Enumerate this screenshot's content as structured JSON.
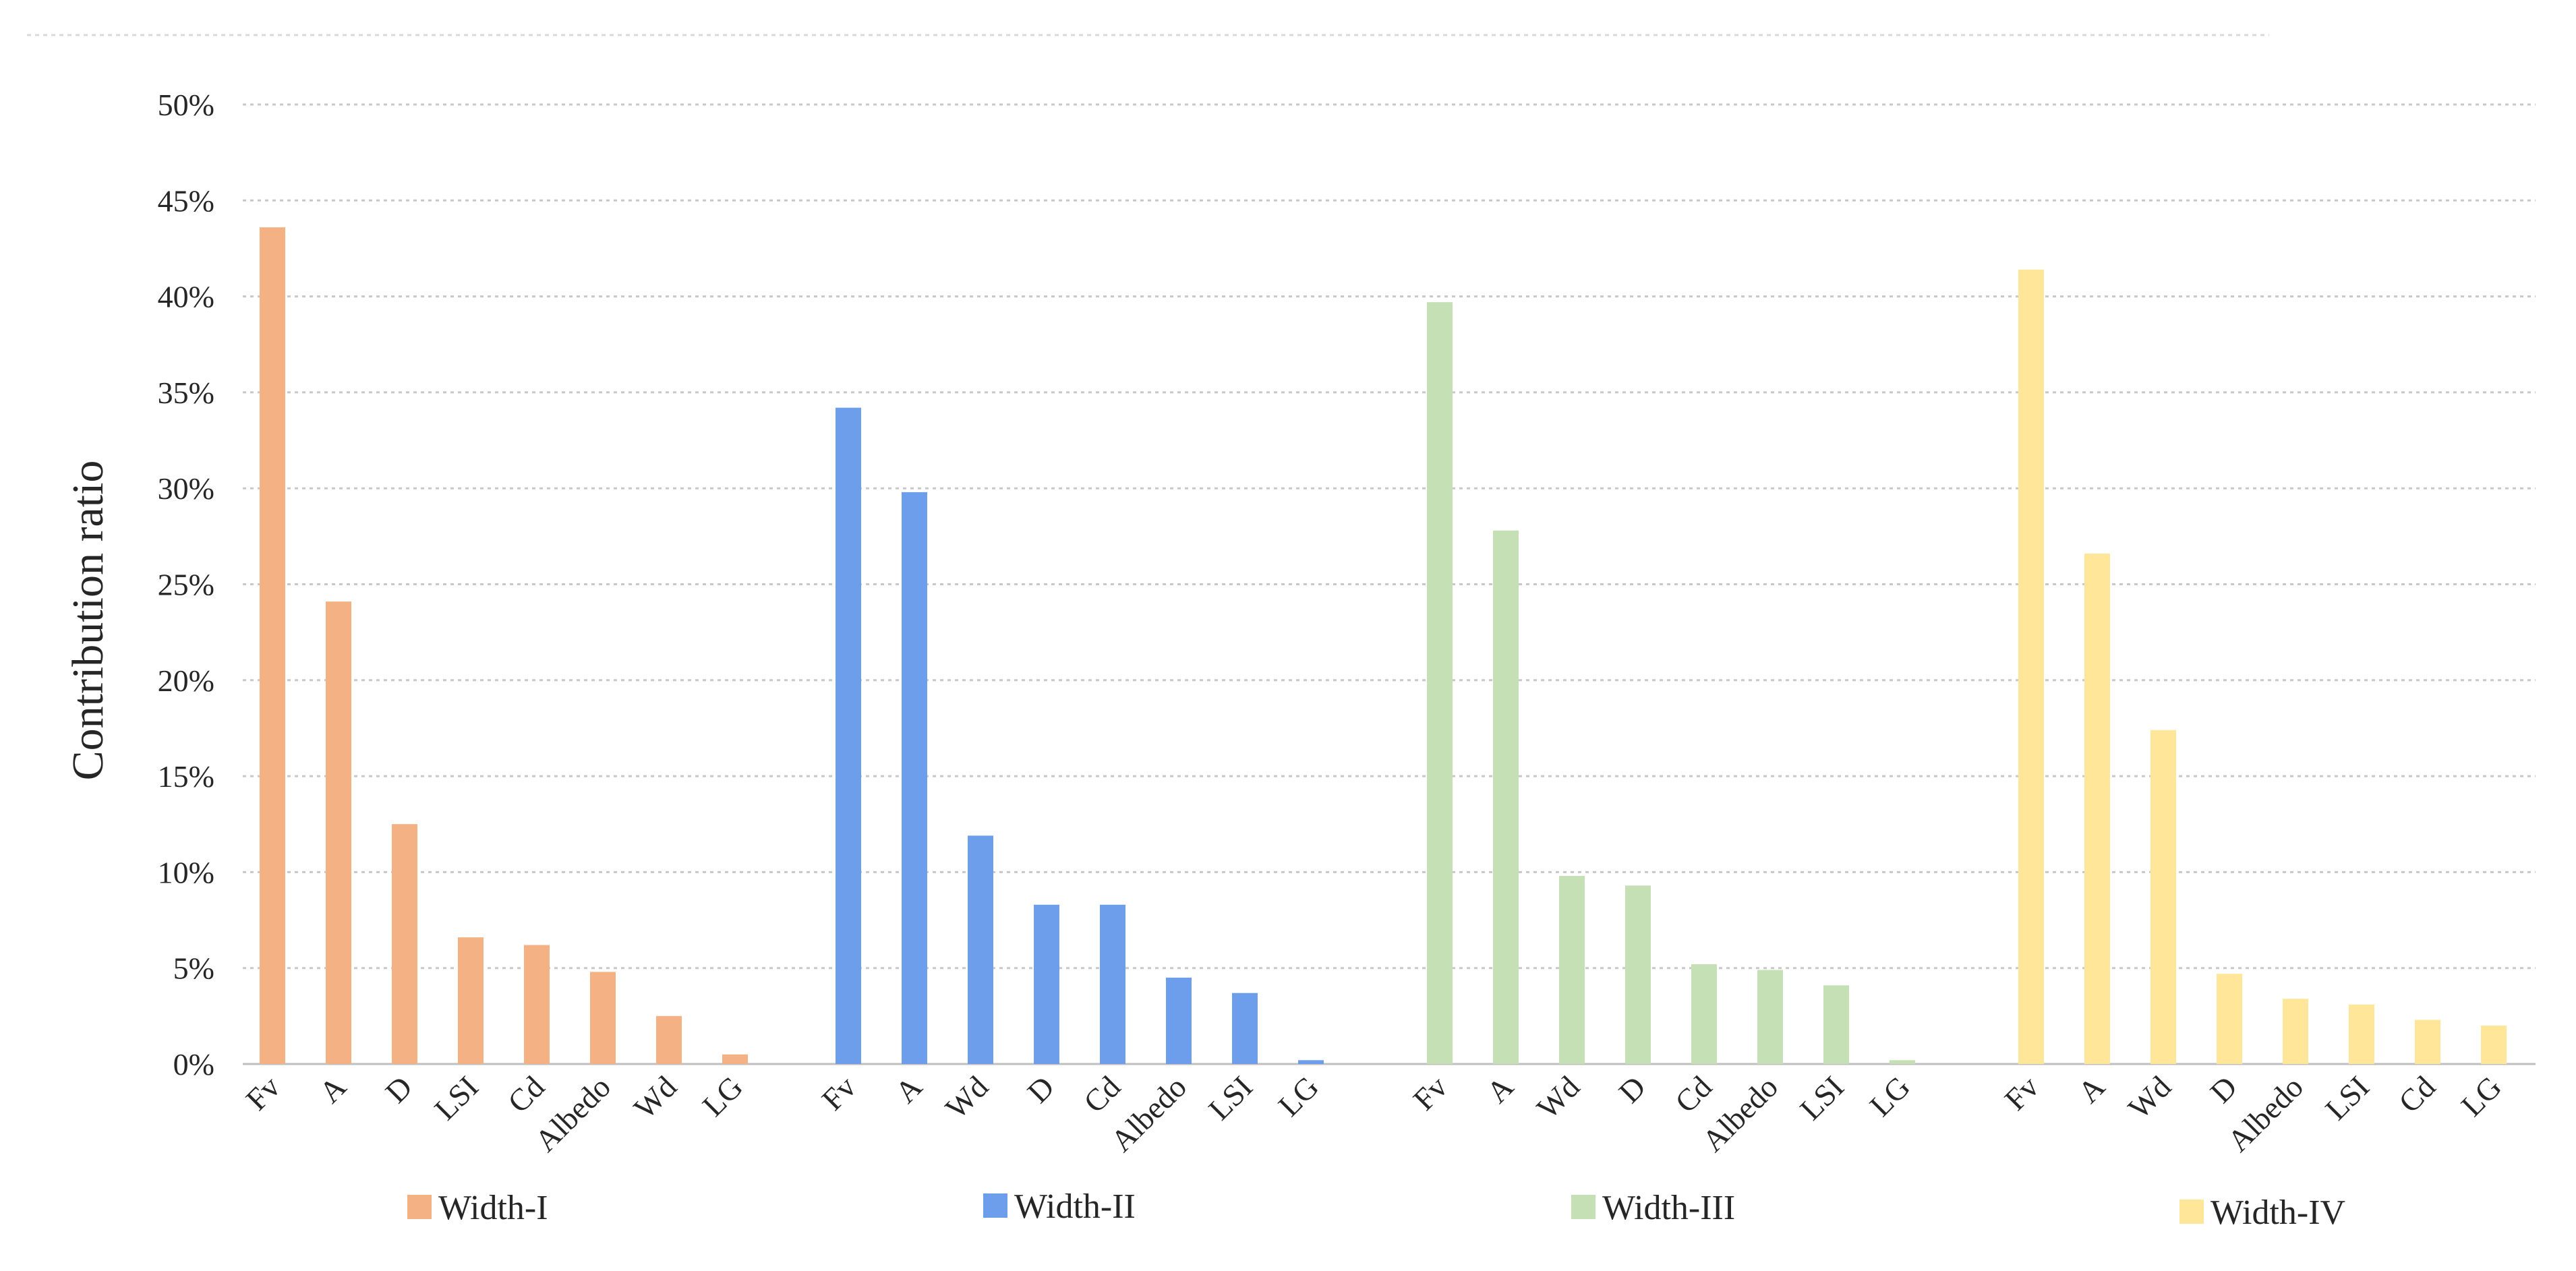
{
  "chart_data": {
    "type": "bar",
    "ylabel": "Contribution ratio",
    "ylim": [
      0,
      50
    ],
    "yticks": [
      "0%",
      "5%",
      "10%",
      "15%",
      "20%",
      "25%",
      "30%",
      "35%",
      "40%",
      "45%",
      "50%"
    ],
    "grid": true,
    "legend_position": "bottom",
    "groups": [
      {
        "name": "Width-I",
        "color": "#F4B183",
        "categories": [
          "Fv",
          "A",
          "D",
          "LSI",
          "Cd",
          "Albedo",
          "Wd",
          "LG"
        ],
        "values": [
          43.6,
          24.1,
          12.5,
          6.6,
          6.2,
          4.8,
          2.5,
          0.5
        ]
      },
      {
        "name": "Width-II",
        "color": "#6D9EEB",
        "categories": [
          "Fv",
          "A",
          "Wd",
          "D",
          "Cd",
          "Albedo",
          "LSI",
          "LG"
        ],
        "values": [
          34.2,
          29.8,
          11.9,
          8.3,
          8.3,
          4.5,
          3.7,
          0.2
        ]
      },
      {
        "name": "Width-III",
        "color": "#C5E0B4",
        "categories": [
          "Fv",
          "A",
          "Wd",
          "D",
          "Cd",
          "Albedo",
          "LSI",
          "LG"
        ],
        "values": [
          39.7,
          27.8,
          9.8,
          9.3,
          5.2,
          4.9,
          4.1,
          0.2
        ]
      },
      {
        "name": "Width-IV",
        "color": "#FFE699",
        "categories": [
          "Fv",
          "A",
          "Wd",
          "D",
          "Albedo",
          "LSI",
          "Cd",
          "LG"
        ],
        "values": [
          41.4,
          26.6,
          17.4,
          4.7,
          3.4,
          3.1,
          2.3,
          2.0
        ]
      }
    ]
  }
}
